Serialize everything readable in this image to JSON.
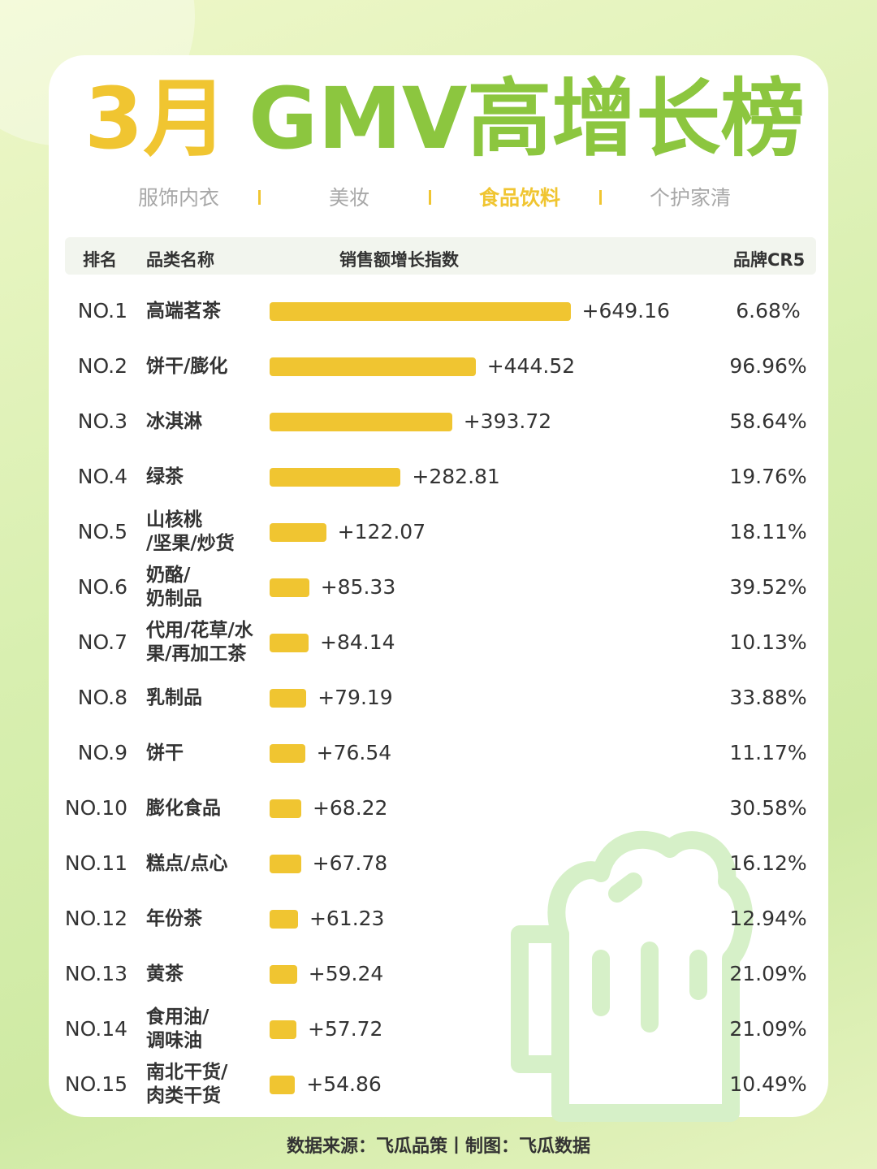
{
  "chart_data": {
    "type": "bar",
    "title_parts": [
      "3月",
      "GMV高增长榜"
    ],
    "tabs": [
      "服饰内衣",
      "美妆",
      "食品饮料",
      "个护家清"
    ],
    "active_tab": 2,
    "headers": [
      "排名",
      "品类名称",
      "销售额增长指数",
      "品牌CR5"
    ],
    "ranks": [
      "NO.1",
      "NO.2",
      "NO.3",
      "NO.4",
      "NO.5",
      "NO.6",
      "NO.7",
      "NO.8",
      "NO.9",
      "NO.10",
      "NO.11",
      "NO.12",
      "NO.13",
      "NO.14",
      "NO.15"
    ],
    "categories": [
      "高端茗茶",
      "饼干/膨化",
      "冰淇淋",
      "绿茶",
      "山核桃\n/坚果/炒货",
      "奶酪/\n奶制品",
      "代用/花草/水\n果/再加工茶",
      "乳制品",
      "饼干",
      "膨化食品",
      "糕点/点心",
      "年份茶",
      "黄茶",
      "食用油/\n调味油",
      "南北干货/\n肉类干货"
    ],
    "values": [
      649.16,
      444.52,
      393.72,
      282.81,
      122.07,
      85.33,
      84.14,
      79.19,
      76.54,
      68.22,
      67.78,
      61.23,
      59.24,
      57.72,
      54.86
    ],
    "value_labels": [
      "+649.16",
      "+444.52",
      "+393.72",
      "+282.81",
      "+122.07",
      "+85.33",
      "+84.14",
      "+79.19",
      "+76.54",
      "+68.22",
      "+67.78",
      "+61.23",
      "+59.24",
      "+57.72",
      "+54.86"
    ],
    "cr5": [
      "6.68%",
      "96.96%",
      "58.64%",
      "19.76%",
      "18.11%",
      "39.52%",
      "10.13%",
      "33.88%",
      "11.17%",
      "30.58%",
      "16.12%",
      "12.94%",
      "21.09%",
      "21.09%",
      "10.49%"
    ],
    "color": "#f0c531",
    "xlim": [
      0,
      650
    ],
    "footer": "数据来源：飞瓜品策丨制图：飞瓜数据"
  }
}
